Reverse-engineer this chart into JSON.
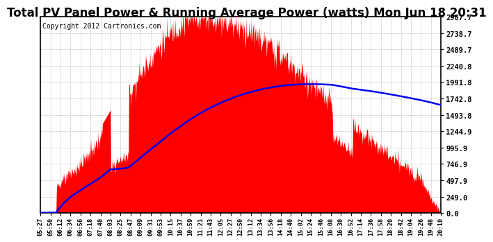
{
  "title": "Total PV Panel Power & Running Average Power (watts) Mon Jun 18 20:31",
  "copyright": "Copyright 2012 Cartronics.com",
  "yticks": [
    0.0,
    249.0,
    497.9,
    746.9,
    995.9,
    1244.9,
    1493.8,
    1742.8,
    1991.8,
    2240.8,
    2489.7,
    2738.7,
    2987.7
  ],
  "ytick_labels": [
    "0.0",
    "249.0",
    "497.9",
    "746.9",
    "995.9",
    "1244.9",
    "1493.8",
    "1742.8",
    "1991.8",
    "2240.8",
    "2489.7",
    "2738.7",
    "2987.7"
  ],
  "ymax": 2987.7,
  "ymin": 0.0,
  "fill_color": "#FF0000",
  "line_color": "#0000EE",
  "background_color": "#FFFFFF",
  "grid_color": "#BBBBBB",
  "title_fontsize": 12,
  "copyright_fontsize": 7,
  "xtick_labels": [
    "05:27",
    "05:50",
    "06:12",
    "06:34",
    "06:56",
    "07:18",
    "07:40",
    "08:03",
    "08:25",
    "08:47",
    "09:09",
    "09:31",
    "09:53",
    "10:15",
    "10:37",
    "10:59",
    "11:21",
    "11:43",
    "12:05",
    "12:27",
    "12:50",
    "13:12",
    "13:34",
    "13:56",
    "14:18",
    "14:40",
    "15:02",
    "15:24",
    "15:46",
    "16:08",
    "16:30",
    "16:52",
    "17:14",
    "17:36",
    "17:58",
    "18:20",
    "18:42",
    "19:04",
    "19:26",
    "19:48",
    "20:10"
  ],
  "n_points": 820
}
